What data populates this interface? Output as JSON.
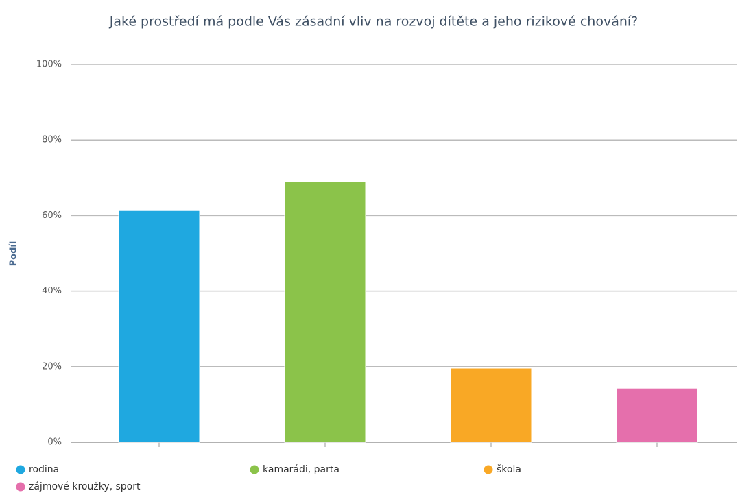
{
  "chart_data": {
    "type": "bar",
    "title": "Jaké prostředí má podle Vás zásadní vliv na rozvoj dítěte a jeho rizikové chování?",
    "ylabel": "Podíl",
    "categories": [
      null,
      null,
      null,
      null
    ],
    "series": [
      {
        "name": "rodina",
        "color": "#1fa8e0",
        "values": [
          61.3,
          null,
          null,
          null
        ]
      },
      {
        "name": "kamarádi, parta",
        "color": "#8bc34a",
        "values": [
          null,
          69,
          null,
          null
        ]
      },
      {
        "name": "škola",
        "color": "#f9a825",
        "values": [
          null,
          null,
          19.6,
          null
        ]
      },
      {
        "name": "zájmové kroužky, sport",
        "color": "#e56fac",
        "values": [
          null,
          null,
          null,
          14.3
        ]
      }
    ],
    "ylim": [
      0,
      100
    ],
    "yticks": [
      {
        "value": 0,
        "label": "0%"
      },
      {
        "value": 20,
        "label": "20%"
      },
      {
        "value": 40,
        "label": "40%"
      },
      {
        "value": 60,
        "label": "60%"
      },
      {
        "value": 80,
        "label": "80%"
      },
      {
        "value": 100,
        "label": "100%"
      }
    ],
    "grid": true
  }
}
